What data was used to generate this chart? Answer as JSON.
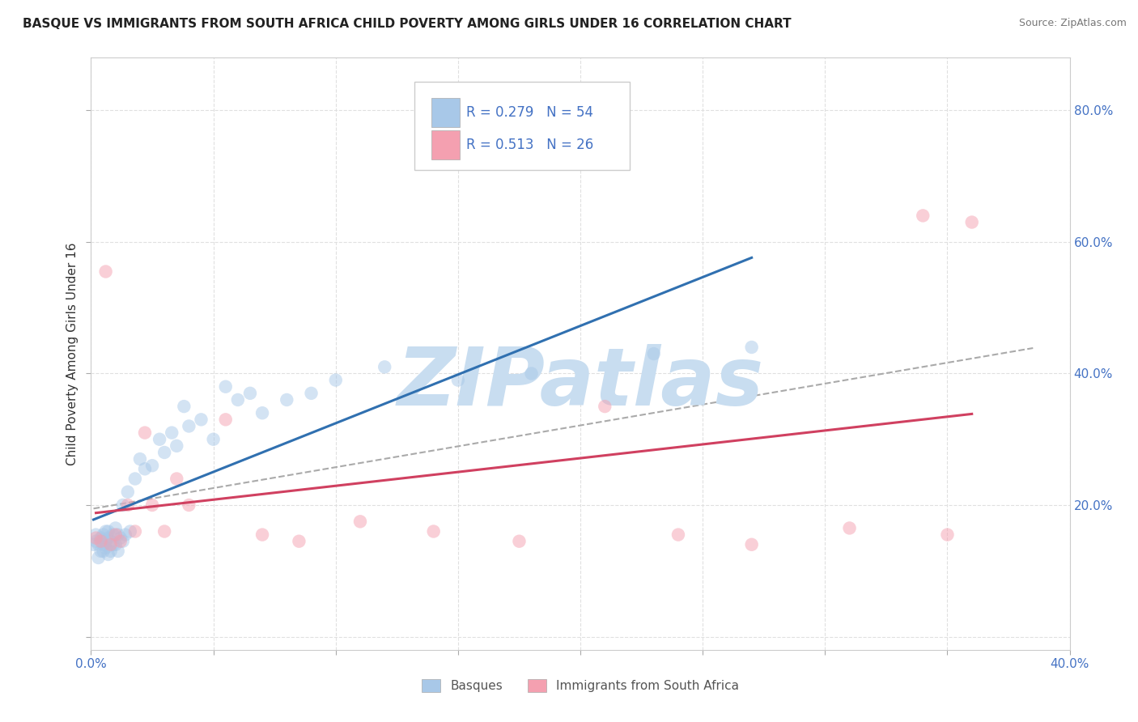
{
  "title": "BASQUE VS IMMIGRANTS FROM SOUTH AFRICA CHILD POVERTY AMONG GIRLS UNDER 16 CORRELATION CHART",
  "source": "Source: ZipAtlas.com",
  "ylabel": "Child Poverty Among Girls Under 16",
  "xlim": [
    0.0,
    0.4
  ],
  "ylim": [
    -0.02,
    0.88
  ],
  "xticks": [
    0.0,
    0.05,
    0.1,
    0.15,
    0.2,
    0.25,
    0.3,
    0.35,
    0.4
  ],
  "ytick_positions": [
    0.0,
    0.2,
    0.4,
    0.6,
    0.8
  ],
  "ytick_labels": [
    "",
    "20.0%",
    "40.0%",
    "60.0%",
    "80.0%"
  ],
  "blue_R": 0.279,
  "blue_N": 54,
  "pink_R": 0.513,
  "pink_N": 26,
  "blue_color": "#a8c8e8",
  "pink_color": "#f4a0b0",
  "blue_line_color": "#3070b0",
  "pink_line_color": "#d04060",
  "scatter_alpha": 0.5,
  "scatter_size": 140,
  "blue_x": [
    0.001,
    0.002,
    0.002,
    0.003,
    0.003,
    0.004,
    0.004,
    0.005,
    0.005,
    0.005,
    0.006,
    0.006,
    0.006,
    0.007,
    0.007,
    0.007,
    0.008,
    0.008,
    0.009,
    0.009,
    0.01,
    0.01,
    0.011,
    0.011,
    0.012,
    0.013,
    0.013,
    0.014,
    0.015,
    0.016,
    0.018,
    0.02,
    0.022,
    0.025,
    0.028,
    0.03,
    0.033,
    0.035,
    0.038,
    0.04,
    0.045,
    0.05,
    0.055,
    0.06,
    0.065,
    0.07,
    0.08,
    0.09,
    0.1,
    0.12,
    0.15,
    0.18,
    0.23,
    0.27
  ],
  "blue_y": [
    0.14,
    0.145,
    0.155,
    0.12,
    0.14,
    0.13,
    0.15,
    0.14,
    0.155,
    0.13,
    0.16,
    0.145,
    0.135,
    0.15,
    0.16,
    0.125,
    0.145,
    0.13,
    0.155,
    0.14,
    0.165,
    0.14,
    0.155,
    0.13,
    0.15,
    0.145,
    0.2,
    0.155,
    0.22,
    0.16,
    0.24,
    0.27,
    0.255,
    0.26,
    0.3,
    0.28,
    0.31,
    0.29,
    0.35,
    0.32,
    0.33,
    0.3,
    0.38,
    0.36,
    0.37,
    0.34,
    0.36,
    0.37,
    0.39,
    0.41,
    0.39,
    0.4,
    0.43,
    0.44
  ],
  "pink_x": [
    0.002,
    0.004,
    0.006,
    0.008,
    0.01,
    0.012,
    0.015,
    0.018,
    0.022,
    0.025,
    0.03,
    0.035,
    0.04,
    0.055,
    0.07,
    0.085,
    0.11,
    0.14,
    0.175,
    0.21,
    0.24,
    0.27,
    0.31,
    0.34,
    0.35,
    0.36
  ],
  "pink_y": [
    0.15,
    0.145,
    0.555,
    0.14,
    0.155,
    0.145,
    0.2,
    0.16,
    0.31,
    0.2,
    0.16,
    0.24,
    0.2,
    0.33,
    0.155,
    0.145,
    0.175,
    0.16,
    0.145,
    0.35,
    0.155,
    0.14,
    0.165,
    0.64,
    0.155,
    0.63
  ],
  "watermark_text": "ZIPatlas",
  "watermark_color": "#c8ddf0",
  "watermark_fontsize": 72,
  "background_color": "#ffffff",
  "grid_color": "#e0e0e0",
  "title_fontsize": 11,
  "axis_label_fontsize": 11,
  "tick_fontsize": 11,
  "tick_color": "#4472c4",
  "text_color": "#333333"
}
